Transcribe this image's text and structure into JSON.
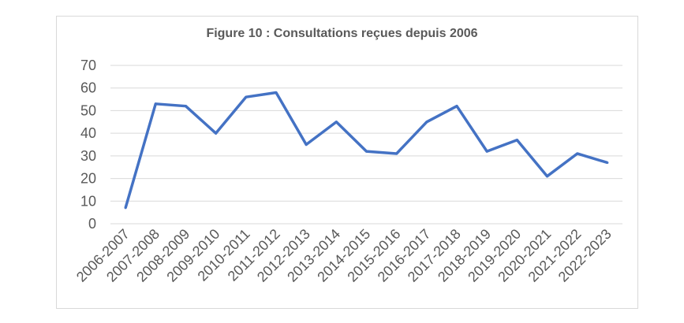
{
  "chart_data": {
    "type": "line",
    "title": "Figure 10 : Consultations reçues depuis 2006",
    "categories": [
      "2006-2007",
      "2007-2008",
      "2008-2009",
      "2009-2010",
      "2010-2011",
      "2011-2012",
      "2012-2013",
      "2013-2014",
      "2014-2015",
      "2015-2016",
      "2016-2017",
      "2017-2018",
      "2018-2019",
      "2019-2020",
      "2020-2021",
      "2021-2022",
      "2022-2023"
    ],
    "values": [
      7,
      53,
      52,
      40,
      56,
      58,
      35,
      45,
      32,
      31,
      45,
      52,
      32,
      37,
      21,
      31,
      27
    ],
    "ylim": [
      0,
      70
    ],
    "yticks": [
      0,
      10,
      20,
      30,
      40,
      50,
      60,
      70
    ],
    "grid": true,
    "line_color": "#4472c4",
    "xlabel": "",
    "ylabel": ""
  }
}
